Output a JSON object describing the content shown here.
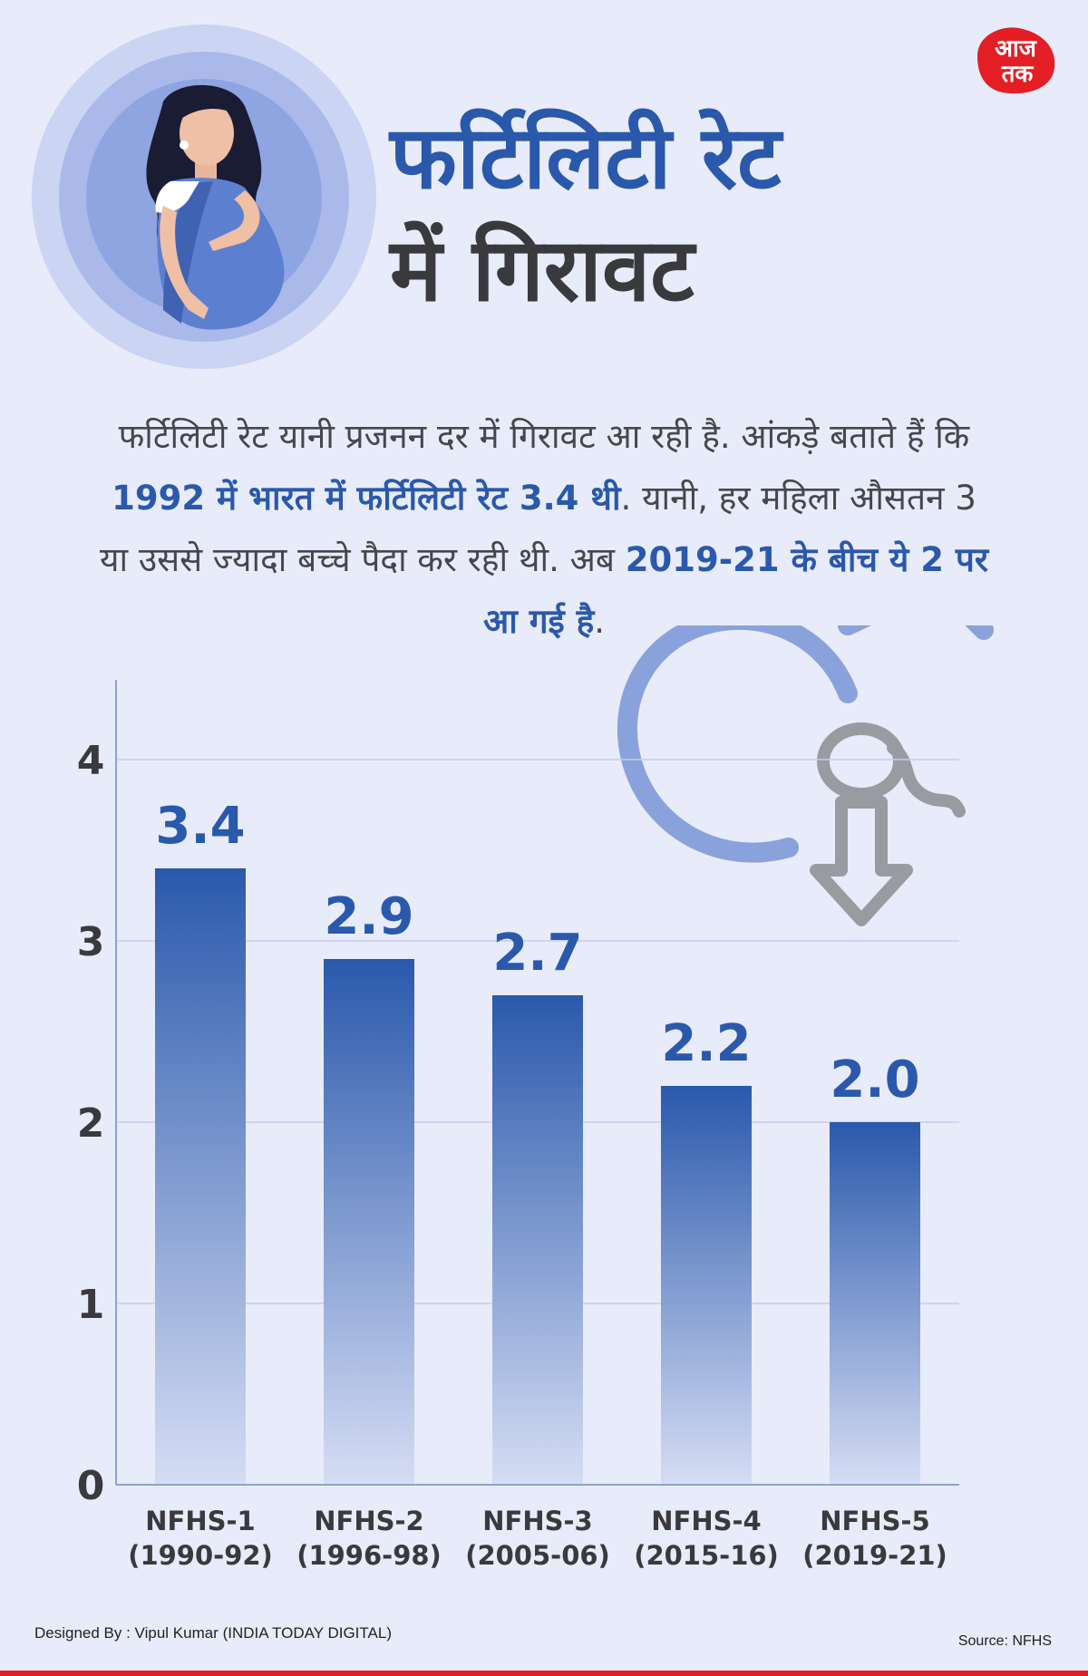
{
  "brand": {
    "logo_text_line1": "आज",
    "logo_text_line2": "तक",
    "red": "#e31e24"
  },
  "header": {
    "title_line1": "फर्टिलिटी रेट",
    "title_line2": "में गिरावट"
  },
  "intro": {
    "part1": "फर्टिलिटी रेट यानी प्रजनन दर में गिरावट आ रही है. आंकड़े बताते हैं कि ",
    "highlight1": "1992 में भारत में फर्टिलिटी रेट 3.4 थी",
    "part2": ". यानी, हर महिला औसतन 3 या उससे ज्यादा बच्चे पैदा कर रही थी. अब ",
    "highlight2": "2019-21 के बीच ये 2 पर आ गई है",
    "part3": "."
  },
  "chart_data": {
    "type": "bar",
    "categories": [
      "NFHS-1",
      "NFHS-2",
      "NFHS-3",
      "NFHS-4",
      "NFHS-5"
    ],
    "category_years": [
      "(1990-92)",
      "(1996-98)",
      "(2005-06)",
      "(2015-16)",
      "(2019-21)"
    ],
    "values": [
      3.4,
      2.9,
      2.7,
      2.2,
      2.0
    ],
    "value_labels": [
      "3.4",
      "2.9",
      "2.7",
      "2.2",
      "2.0"
    ],
    "yticks": [
      "0",
      "1",
      "2",
      "3",
      "4"
    ],
    "ylim": [
      0,
      4.4
    ],
    "grid": true,
    "bar_color": "#2a59ac"
  },
  "footer": {
    "credit": "Designed By : Vipul Kumar (INDIA TODAY DIGITAL)",
    "source": "Source: NFHS"
  },
  "icons": [
    "pregnant-woman-illustration",
    "female-symbol-icon",
    "sperm-icon",
    "down-arrow-icon"
  ],
  "colors": {
    "background": "#e8ebf9",
    "accent": "#2a59ac",
    "text": "#3a3a3e"
  }
}
